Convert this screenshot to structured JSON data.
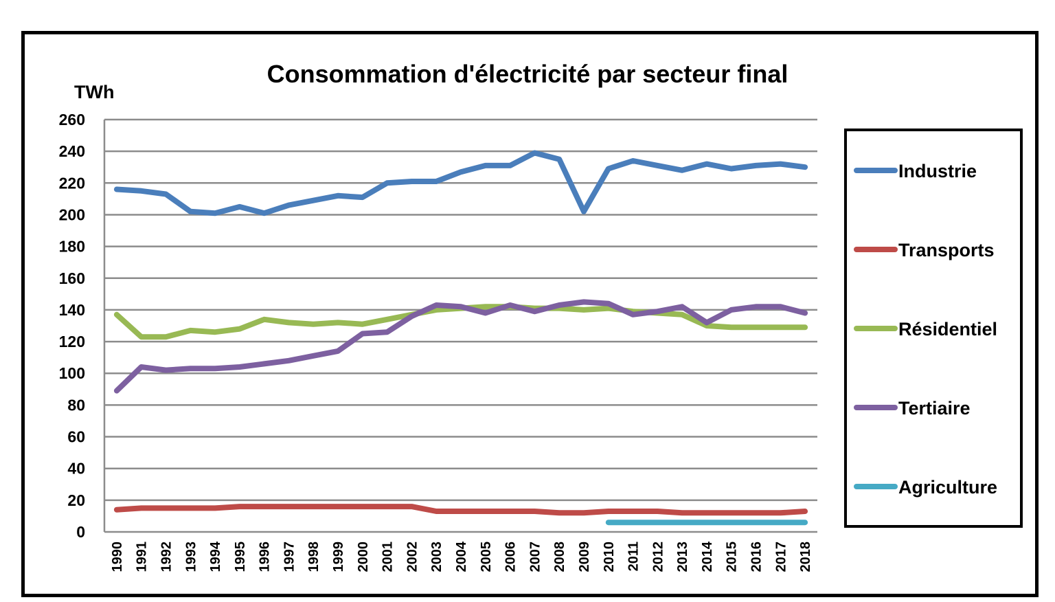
{
  "chart_data": {
    "type": "line",
    "title": "Consommation d'électricité par secteur final",
    "ylabel": "TWh",
    "xlabel": "",
    "ylim": [
      0,
      260
    ],
    "yticks": [
      "0",
      "20",
      "40",
      "60",
      "80",
      "100",
      "120",
      "140",
      "160",
      "180",
      "200",
      "220",
      "240",
      "260"
    ],
    "grid": true,
    "legend_position": "right",
    "categories": [
      "1990",
      "1991",
      "1992",
      "1993",
      "1994",
      "1995",
      "1996",
      "1997",
      "1998",
      "1999",
      "2000",
      "2001",
      "2002",
      "2003",
      "2004",
      "2005",
      "2006",
      "2007",
      "2008",
      "2009",
      "2010",
      "2011",
      "2012",
      "2013",
      "2014",
      "2015",
      "2016",
      "2017",
      "2018"
    ],
    "series": [
      {
        "name": "Industrie",
        "color": "#4A7EBB",
        "values": [
          216,
          215,
          213,
          202,
          201,
          205,
          201,
          206,
          209,
          212,
          211,
          220,
          221,
          221,
          227,
          231,
          231,
          239,
          235,
          202,
          229,
          234,
          231,
          228,
          232,
          229,
          231,
          232,
          230
        ]
      },
      {
        "name": "Transports",
        "color": "#BE4B48",
        "values": [
          14,
          15,
          15,
          15,
          15,
          16,
          16,
          16,
          16,
          16,
          16,
          16,
          16,
          13,
          13,
          13,
          13,
          13,
          12,
          12,
          13,
          13,
          13,
          12,
          12,
          12,
          12,
          12,
          13
        ]
      },
      {
        "name": "Résidentiel",
        "color": "#98B954",
        "values": [
          137,
          123,
          123,
          127,
          126,
          128,
          134,
          132,
          131,
          132,
          131,
          134,
          137,
          140,
          141,
          142,
          142,
          141,
          141,
          140,
          141,
          139,
          138,
          137,
          130,
          129,
          129,
          129,
          129
        ]
      },
      {
        "name": "Tertiaire",
        "color": "#7D60A0",
        "values": [
          89,
          104,
          102,
          103,
          103,
          104,
          106,
          108,
          111,
          114,
          125,
          126,
          136,
          143,
          142,
          138,
          143,
          139,
          143,
          145,
          144,
          137,
          139,
          142,
          132,
          140,
          142,
          142,
          138
        ]
      },
      {
        "name": "Agriculture",
        "color": "#46AAC5",
        "values": [
          null,
          null,
          null,
          null,
          null,
          null,
          null,
          null,
          null,
          null,
          null,
          null,
          null,
          null,
          null,
          null,
          null,
          null,
          null,
          null,
          6,
          6,
          6,
          6,
          6,
          6,
          6,
          6,
          6
        ]
      }
    ]
  }
}
